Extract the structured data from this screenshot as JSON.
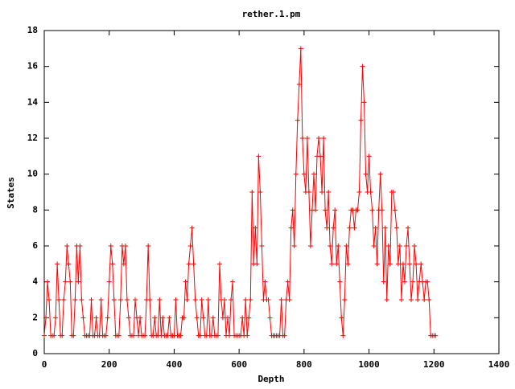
{
  "chart_data": {
    "type": "line",
    "title": "rether.1.pm",
    "xlabel": "Depth",
    "ylabel": "States",
    "color": "#ff0000",
    "xlim": [
      0,
      1400
    ],
    "xticks": [
      0,
      200,
      400,
      600,
      800,
      1000,
      1200,
      1400
    ],
    "ylim": [
      0,
      18
    ],
    "yticks": [
      0,
      2,
      4,
      6,
      8,
      10,
      12,
      14,
      16,
      18
    ],
    "x": [
      0,
      5,
      10,
      15,
      20,
      25,
      30,
      35,
      40,
      45,
      50,
      55,
      60,
      65,
      70,
      75,
      80,
      85,
      90,
      95,
      100,
      105,
      110,
      115,
      120,
      125,
      130,
      135,
      140,
      145,
      150,
      155,
      160,
      165,
      170,
      175,
      180,
      185,
      190,
      195,
      200,
      205,
      210,
      215,
      220,
      225,
      230,
      235,
      240,
      245,
      250,
      255,
      260,
      265,
      270,
      275,
      280,
      285,
      290,
      295,
      300,
      305,
      310,
      315,
      320,
      325,
      330,
      335,
      340,
      345,
      350,
      355,
      360,
      365,
      370,
      375,
      380,
      385,
      390,
      395,
      400,
      405,
      410,
      415,
      420,
      425,
      430,
      435,
      440,
      445,
      450,
      455,
      460,
      465,
      470,
      475,
      480,
      485,
      490,
      495,
      500,
      505,
      510,
      515,
      520,
      525,
      530,
      535,
      540,
      545,
      550,
      555,
      560,
      565,
      570,
      575,
      580,
      585,
      590,
      595,
      600,
      605,
      610,
      615,
      620,
      625,
      630,
      635,
      640,
      645,
      650,
      655,
      660,
      665,
      670,
      675,
      680,
      685,
      690,
      695,
      700,
      705,
      710,
      715,
      720,
      725,
      730,
      735,
      740,
      745,
      750,
      755,
      760,
      765,
      770,
      775,
      780,
      785,
      790,
      795,
      800,
      805,
      810,
      815,
      820,
      825,
      830,
      835,
      840,
      845,
      850,
      855,
      860,
      865,
      870,
      875,
      880,
      885,
      890,
      895,
      900,
      905,
      910,
      915,
      920,
      925,
      930,
      935,
      940,
      945,
      950,
      955,
      960,
      965,
      970,
      975,
      980,
      985,
      990,
      995,
      1000,
      1005,
      1010,
      1015,
      1020,
      1025,
      1030,
      1035,
      1040,
      1045,
      1050,
      1055,
      1060,
      1065,
      1070,
      1075,
      1080,
      1085,
      1090,
      1095,
      1100,
      1105,
      1110,
      1115,
      1120,
      1125,
      1130,
      1135,
      1140,
      1145,
      1150,
      1155,
      1160,
      1165,
      1170,
      1175,
      1180,
      1185,
      1190,
      1195,
      1200,
      1205
    ],
    "values": [
      1,
      2,
      4,
      3,
      1,
      1,
      1,
      2,
      5,
      3,
      1,
      1,
      3,
      4,
      6,
      5,
      4,
      1,
      1,
      3,
      6,
      4,
      6,
      3,
      2,
      1,
      1,
      1,
      1,
      3,
      1,
      1,
      2,
      1,
      1,
      3,
      1,
      1,
      1,
      2,
      4,
      6,
      5,
      3,
      1,
      1,
      1,
      3,
      6,
      5,
      6,
      3,
      2,
      1,
      1,
      1,
      3,
      2,
      1,
      2,
      1,
      1,
      1,
      3,
      6,
      3,
      1,
      1,
      2,
      1,
      1,
      3,
      1,
      2,
      1,
      1,
      1,
      2,
      1,
      1,
      1,
      3,
      1,
      1,
      1,
      2,
      2,
      4,
      3,
      5,
      6,
      7,
      5,
      3,
      2,
      1,
      1,
      3,
      2,
      1,
      1,
      3,
      1,
      1,
      2,
      1,
      1,
      1,
      5,
      3,
      2,
      3,
      1,
      2,
      1,
      3,
      4,
      1,
      1,
      1,
      1,
      1,
      2,
      1,
      3,
      1,
      2,
      3,
      9,
      5,
      7,
      5,
      11,
      9,
      6,
      3,
      4,
      3,
      3,
      2,
      1,
      1,
      1,
      1,
      1,
      1,
      3,
      1,
      1,
      3,
      4,
      3,
      7,
      8,
      6,
      10,
      13,
      15,
      17,
      12,
      10,
      9,
      12,
      9,
      6,
      8,
      10,
      8,
      11,
      12,
      11,
      9,
      12,
      8,
      7,
      9,
      6,
      5,
      7,
      8,
      5,
      6,
      4,
      2,
      1,
      3,
      6,
      5,
      7,
      8,
      8,
      7,
      8,
      8,
      9,
      13,
      16,
      14,
      10,
      9,
      11,
      9,
      8,
      6,
      7,
      5,
      8,
      10,
      8,
      4,
      7,
      3,
      6,
      5,
      9,
      9,
      8,
      7,
      5,
      6,
      3,
      5,
      4,
      6,
      7,
      5,
      3,
      4,
      6,
      5,
      3,
      4,
      5,
      4,
      3,
      4,
      4,
      3,
      1,
      1,
      1,
      1
    ]
  }
}
